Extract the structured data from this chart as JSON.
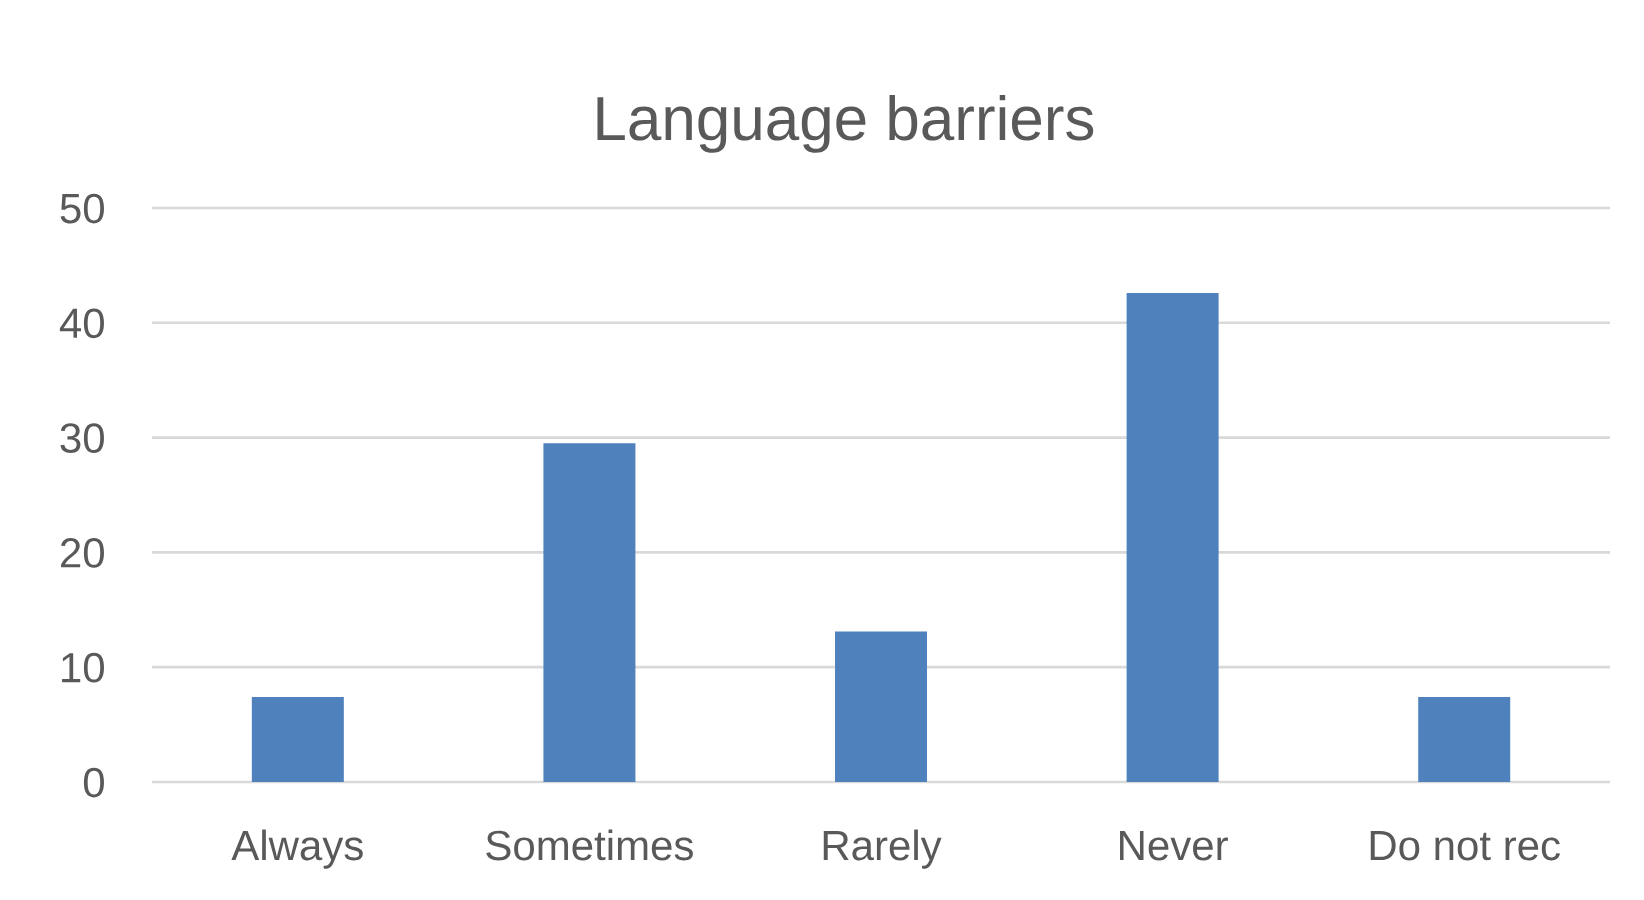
{
  "chart_data": {
    "type": "bar",
    "title": "Language barriers",
    "categories": [
      "Always",
      "Sometimes",
      "Rarely",
      "Never",
      "Do not rec"
    ],
    "values": [
      7.4,
      29.5,
      13.1,
      42.6,
      7.4
    ],
    "color": "#4f81bd",
    "ylim": [
      0,
      50
    ],
    "yticks": [
      0,
      10,
      20,
      30,
      40,
      50
    ],
    "grid": "y"
  }
}
